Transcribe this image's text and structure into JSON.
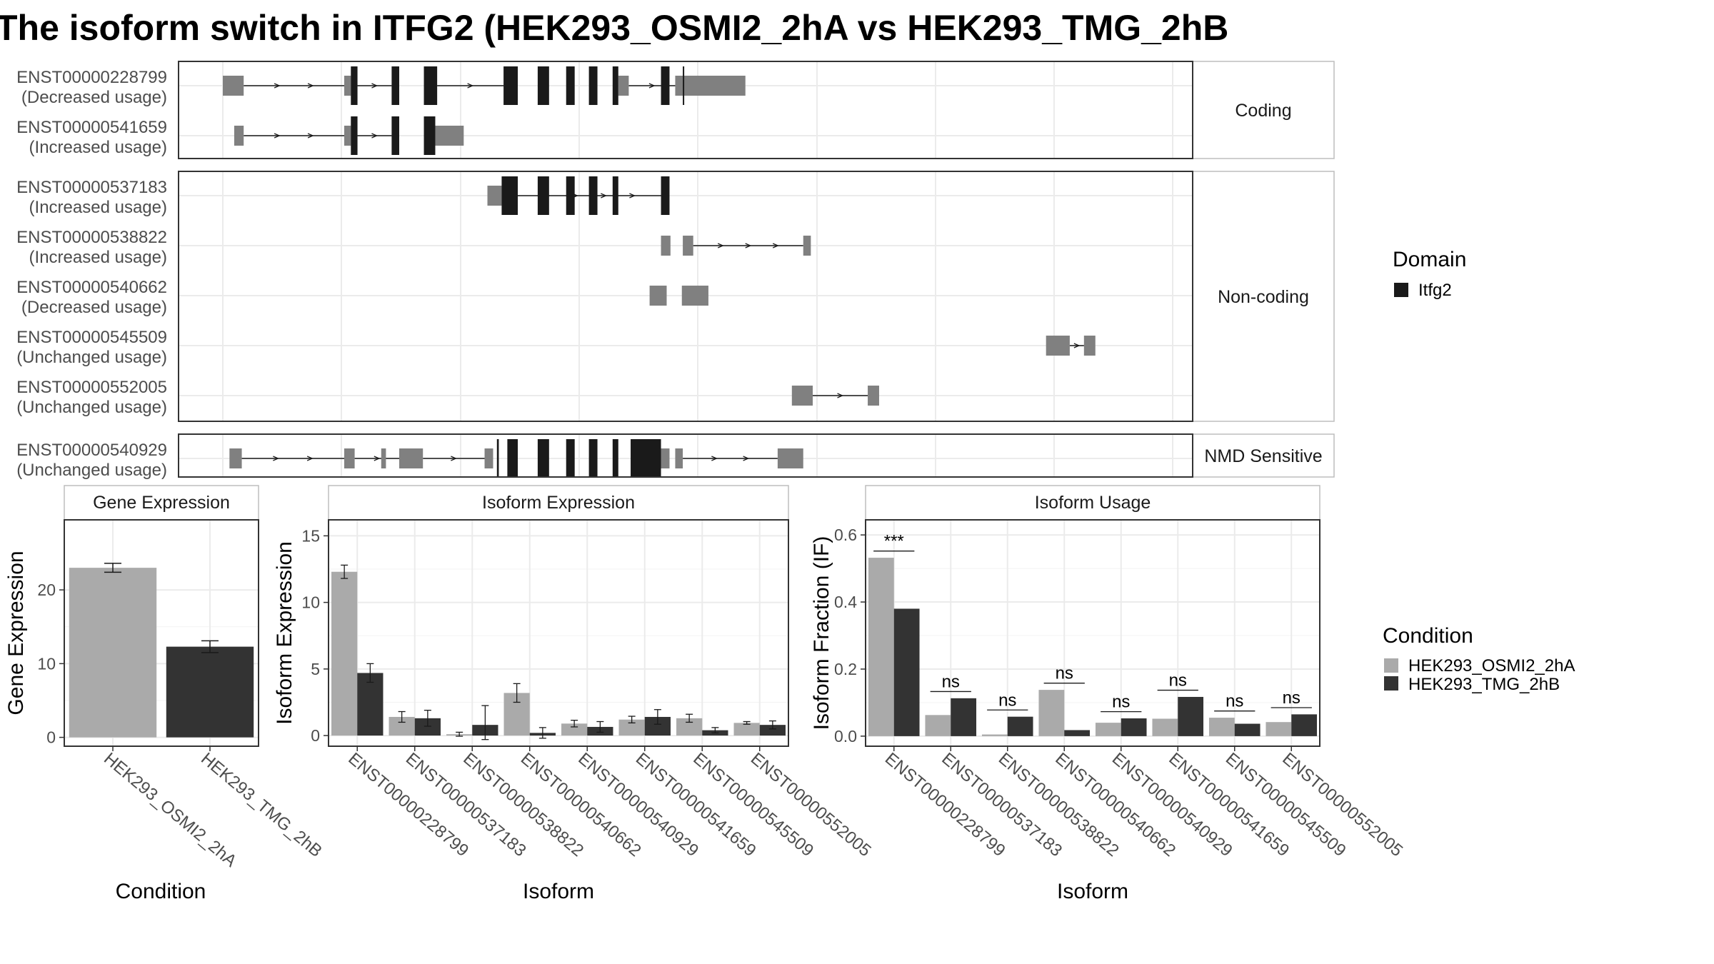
{
  "title": "The isoform switch in ITFG2 (HEK293_OSMI2_2hA vs HEK293_TMG_2hB",
  "colors": {
    "utr": "#808080",
    "cds": "#1a1a1a",
    "cond1": "#aaaaaa",
    "cond2": "#333333",
    "grid": "#ebebeb",
    "panel_border": "#333333",
    "strip_border": "#bdbdbd"
  },
  "structure": {
    "groups": [
      {
        "label": "Coding",
        "transcripts": [
          {
            "id": "ENST00000228799",
            "usage": "(Decreased usage)",
            "utr": [
              [
                0,
                0.022
              ],
              [
                0.128,
                0.135
              ],
              [
                0.417,
                0.428
              ],
              [
                0.477,
                0.485
              ],
              [
                0.485,
                0.551
              ]
            ],
            "cds": [
              [
                0.135,
                0.142
              ],
              [
                0.178,
                0.186
              ],
              [
                0.212,
                0.226
              ],
              [
                0.296,
                0.311
              ],
              [
                0.332,
                0.344
              ],
              [
                0.362,
                0.371
              ],
              [
                0.386,
                0.395
              ],
              [
                0.411,
                0.417
              ],
              [
                0.462,
                0.471
              ],
              [
                0.485,
                0.485
              ]
            ],
            "introns": [
              [
                0.022,
                0.128
              ],
              [
                0.142,
                0.178
              ],
              [
                0.226,
                0.296
              ],
              [
                0.428,
                0.477
              ]
            ]
          },
          {
            "id": "ENST00000541659",
            "usage": "(Increased usage)",
            "utr": [
              [
                0.012,
                0.022
              ],
              [
                0.128,
                0.135
              ],
              [
                0.224,
                0.254
              ]
            ],
            "cds": [
              [
                0.135,
                0.142
              ],
              [
                0.178,
                0.186
              ],
              [
                0.212,
                0.224
              ]
            ],
            "introns": [
              [
                0.022,
                0.128
              ],
              [
                0.142,
                0.178
              ]
            ]
          }
        ]
      },
      {
        "label": "Non-coding",
        "transcripts": [
          {
            "id": "ENST00000537183",
            "usage": "(Increased usage)",
            "utr": [
              [
                0.279,
                0.294
              ]
            ],
            "cds": [
              [
                0.294,
                0.311
              ],
              [
                0.332,
                0.344
              ],
              [
                0.362,
                0.371
              ],
              [
                0.386,
                0.395
              ],
              [
                0.411,
                0.417
              ],
              [
                0.462,
                0.471
              ]
            ],
            "introns": [
              [
                0.311,
                0.462
              ]
            ]
          },
          {
            "id": "ENST00000538822",
            "usage": "(Increased usage)",
            "utr": [
              [
                0.462,
                0.472
              ],
              [
                0.485,
                0.496
              ],
              [
                0.612,
                0.62
              ]
            ],
            "cds": [],
            "introns": [
              [
                0.496,
                0.612
              ]
            ]
          },
          {
            "id": "ENST00000540662",
            "usage": "(Decreased usage)",
            "utr": [
              [
                0.45,
                0.468
              ],
              [
                0.484,
                0.512
              ]
            ],
            "cds": [],
            "introns": []
          },
          {
            "id": "ENST00000545509",
            "usage": "(Unchanged usage)",
            "utr": [
              [
                0.868,
                0.893
              ],
              [
                0.908,
                0.92
              ]
            ],
            "cds": [],
            "introns": [
              [
                0.893,
                0.908
              ]
            ]
          },
          {
            "id": "ENST00000552005",
            "usage": "(Unchanged usage)",
            "utr": [
              [
                0.6,
                0.622
              ],
              [
                0.68,
                0.692
              ]
            ],
            "cds": [],
            "introns": [
              [
                0.622,
                0.68
              ]
            ]
          }
        ]
      },
      {
        "label": "NMD Sensitive",
        "transcripts": [
          {
            "id": "ENST00000540929",
            "usage": "(Unchanged usage)",
            "utr": [
              [
                0.007,
                0.02
              ],
              [
                0.128,
                0.139
              ],
              [
                0.167,
                0.172
              ],
              [
                0.186,
                0.211
              ],
              [
                0.276,
                0.285
              ],
              [
                0.462,
                0.471
              ],
              [
                0.477,
                0.485
              ],
              [
                0.585,
                0.612
              ]
            ],
            "cds": [
              [
                0.289,
                0.291
              ],
              [
                0.3,
                0.311
              ],
              [
                0.332,
                0.344
              ],
              [
                0.362,
                0.371
              ],
              [
                0.386,
                0.395
              ],
              [
                0.411,
                0.417
              ],
              [
                0.43,
                0.462
              ]
            ],
            "introns": [
              [
                0.02,
                0.128
              ],
              [
                0.139,
                0.186
              ],
              [
                0.211,
                0.276
              ],
              [
                0.485,
                0.585
              ]
            ]
          }
        ]
      }
    ],
    "legend": {
      "title": "Domain",
      "items": [
        "Itfg2"
      ]
    }
  },
  "chart_data": [
    {
      "type": "bar",
      "title": "Gene Expression",
      "xlabel": "Condition",
      "ylabel": "Gene Expression",
      "categories": [
        "HEK293_OSMI2_2hA",
        "HEK293_TMG_2hB"
      ],
      "values": [
        23.0,
        12.3
      ],
      "errors": [
        0.6,
        0.8
      ],
      "ylim": [
        -1.2,
        29.5
      ],
      "yticks": [
        0,
        10,
        20
      ]
    },
    {
      "type": "bar",
      "title": "Isoform Expression",
      "xlabel": "Isoform",
      "ylabel": "Isoform Expression",
      "categories": [
        "ENST00000228799",
        "ENST00000537183",
        "ENST00000538822",
        "ENST00000540662",
        "ENST00000540929",
        "ENST00000541659",
        "ENST00000545509",
        "ENST00000552005"
      ],
      "series": [
        {
          "name": "HEK293_OSMI2_2hA",
          "values": [
            12.3,
            1.4,
            0.1,
            3.2,
            0.9,
            1.2,
            1.3,
            0.95
          ],
          "errors": [
            0.5,
            0.4,
            0.15,
            0.7,
            0.25,
            0.25,
            0.3,
            0.1
          ]
        },
        {
          "name": "HEK293_TMG_2hB",
          "values": [
            4.7,
            1.3,
            0.8,
            0.2,
            0.65,
            1.4,
            0.4,
            0.8
          ],
          "errors": [
            0.7,
            0.6,
            1.45,
            0.4,
            0.4,
            0.55,
            0.2,
            0.3
          ]
        }
      ],
      "ylim": [
        -0.8,
        16.2
      ],
      "yticks": [
        0,
        5,
        10,
        15
      ]
    },
    {
      "type": "bar",
      "title": "Isoform Usage",
      "xlabel": "Isoform",
      "ylabel": "Isoform Fraction (IF)",
      "categories": [
        "ENST00000228799",
        "ENST00000537183",
        "ENST00000538822",
        "ENST00000540662",
        "ENST00000540929",
        "ENST00000541659",
        "ENST00000545509",
        "ENST00000552005"
      ],
      "series": [
        {
          "name": "HEK293_OSMI2_2hA",
          "values": [
            0.532,
            0.063,
            0.005,
            0.138,
            0.04,
            0.052,
            0.055,
            0.042
          ]
        },
        {
          "name": "HEK293_TMG_2hB",
          "values": [
            0.38,
            0.113,
            0.058,
            0.018,
            0.053,
            0.117,
            0.037,
            0.065
          ]
        }
      ],
      "significance": [
        "***",
        "ns",
        "ns",
        "ns",
        "ns",
        "ns",
        "ns",
        "ns"
      ],
      "ylim": [
        -0.03,
        0.645
      ],
      "yticks": [
        0.0,
        0.2,
        0.4,
        0.6
      ],
      "ytick_labels": [
        "0.0",
        "0.2",
        "0.4",
        "0.6"
      ]
    }
  ],
  "condition_legend": {
    "title": "Condition",
    "items": [
      "HEK293_OSMI2_2hA",
      "HEK293_TMG_2hB"
    ]
  }
}
